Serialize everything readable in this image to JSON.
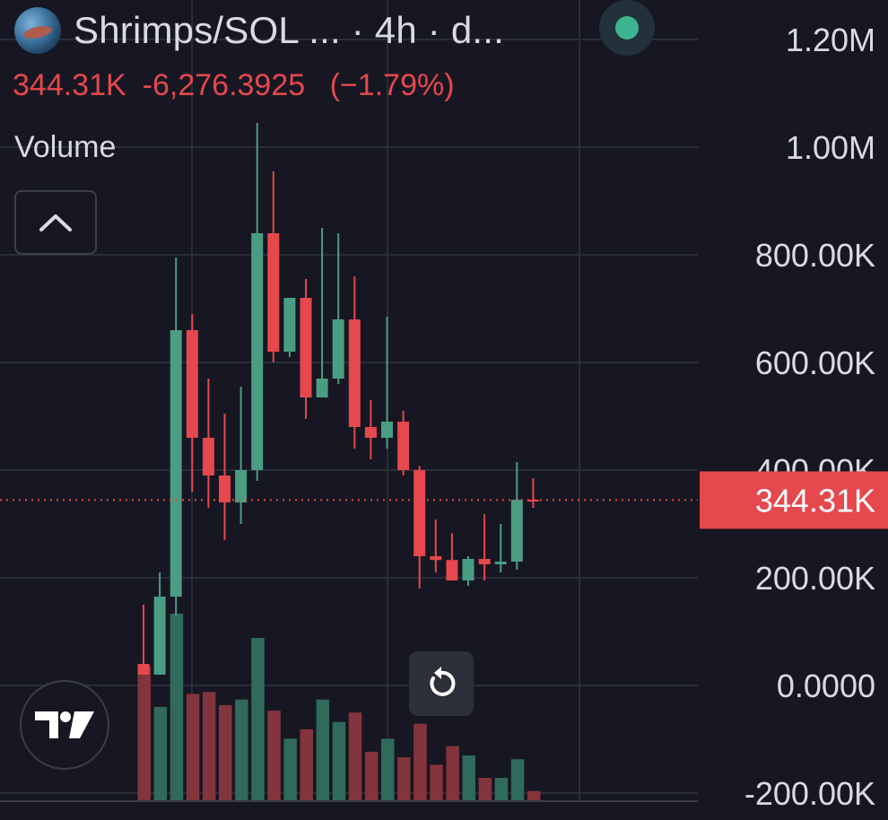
{
  "header": {
    "title": "Shrimps/SOL ...  · 4h · d...",
    "last_price": "344.31K",
    "change_abs": "-6,276.3925",
    "change_pct": "(−1.79%)",
    "volume_label": "Volume"
  },
  "colors": {
    "background": "#161722",
    "up": "#4a9d83",
    "down": "#e5484d",
    "up_volume": "#2f6a5b",
    "down_volume": "#84343c",
    "grid": "#2a2c38",
    "axis_text": "#d9dbe0",
    "status_dot": "#3eb390"
  },
  "icons": {
    "collapse": "chevron-up-icon",
    "brand": "tradingview-logo",
    "reset": "rotate-reset-icon",
    "status": "live-status-dot"
  },
  "chart_data": {
    "type": "candlestick",
    "y_axis_labels": [
      "1.20M",
      "1.00M",
      "800.00K",
      "600.00K",
      "400.00K",
      "200.00K",
      "0.0000",
      "-200.00K"
    ],
    "y_ticks": [
      1200000,
      1000000,
      800000,
      600000,
      400000,
      200000,
      0,
      -200000
    ],
    "ylim": [
      -220000,
      1270000
    ],
    "current_price": 344310,
    "current_price_label": "344.31K",
    "grid": true,
    "candles": [
      {
        "o": 40000,
        "h": 150000,
        "l": 20000,
        "c": 20000
      },
      {
        "o": 20000,
        "h": 210000,
        "l": 20000,
        "c": 165000
      },
      {
        "o": 165000,
        "h": 795000,
        "l": 130000,
        "c": 660000
      },
      {
        "o": 660000,
        "h": 690000,
        "l": 360000,
        "c": 460000
      },
      {
        "o": 460000,
        "h": 570000,
        "l": 330000,
        "c": 390000
      },
      {
        "o": 390000,
        "h": 505000,
        "l": 270000,
        "c": 340000
      },
      {
        "o": 340000,
        "h": 555000,
        "l": 300000,
        "c": 400000
      },
      {
        "o": 400000,
        "h": 1045000,
        "l": 380000,
        "c": 840000
      },
      {
        "o": 840000,
        "h": 955000,
        "l": 600000,
        "c": 620000
      },
      {
        "o": 620000,
        "h": 720000,
        "l": 610000,
        "c": 720000
      },
      {
        "o": 720000,
        "h": 755000,
        "l": 495000,
        "c": 535000
      },
      {
        "o": 535000,
        "h": 850000,
        "l": 535000,
        "c": 570000
      },
      {
        "o": 570000,
        "h": 840000,
        "l": 560000,
        "c": 680000
      },
      {
        "o": 680000,
        "h": 760000,
        "l": 440000,
        "c": 480000
      },
      {
        "o": 480000,
        "h": 530000,
        "l": 420000,
        "c": 460000
      },
      {
        "o": 460000,
        "h": 685000,
        "l": 440000,
        "c": 490000
      },
      {
        "o": 490000,
        "h": 510000,
        "l": 390000,
        "c": 400000
      },
      {
        "o": 400000,
        "h": 408000,
        "l": 180000,
        "c": 240000
      },
      {
        "o": 240000,
        "h": 308000,
        "l": 210000,
        "c": 233000
      },
      {
        "o": 233000,
        "h": 283000,
        "l": 195000,
        "c": 195000
      },
      {
        "o": 195000,
        "h": 240000,
        "l": 185000,
        "c": 235000
      },
      {
        "o": 235000,
        "h": 318000,
        "l": 195000,
        "c": 225000
      },
      {
        "o": 225000,
        "h": 300000,
        "l": 210000,
        "c": 230000
      },
      {
        "o": 230000,
        "h": 415000,
        "l": 215000,
        "c": 345000
      },
      {
        "o": 345000,
        "h": 385000,
        "l": 330000,
        "c": 344310
      }
    ],
    "volume": [
      0.72,
      0.5,
      1.0,
      0.57,
      0.58,
      0.51,
      0.54,
      0.87,
      0.48,
      0.33,
      0.38,
      0.54,
      0.42,
      0.47,
      0.26,
      0.33,
      0.23,
      0.41,
      0.19,
      0.29,
      0.24,
      0.12,
      0.12,
      0.22,
      0.05
    ]
  }
}
